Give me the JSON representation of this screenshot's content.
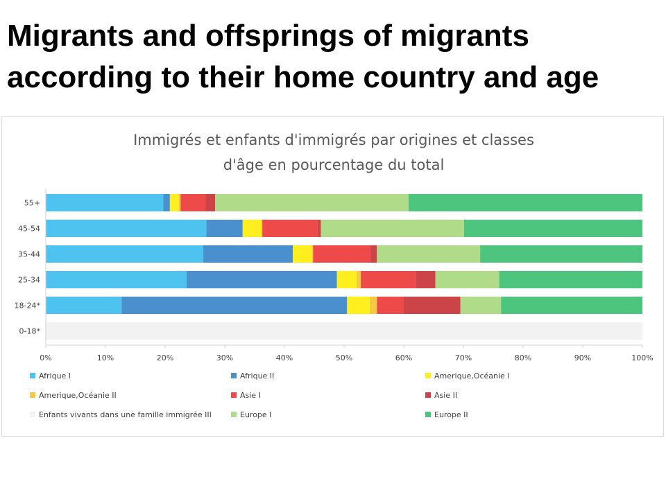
{
  "header": {
    "title_line1": "Migrants and offsprings of migrants",
    "title_line2": "according to their home country and age"
  },
  "chart_data": {
    "type": "bar",
    "orientation": "horizontal",
    "stacked": "percent",
    "title_line1": "Immigrés et enfants d'immigrés par origines et classes",
    "title_line2": "d'âge en pourcentage du total",
    "categories": [
      "55+",
      "45-54",
      "35-44",
      "25-34",
      "18-24*",
      "0-18*"
    ],
    "xlim": [
      0,
      100
    ],
    "xticks": [
      "0%",
      "10%",
      "20%",
      "30%",
      "40%",
      "50%",
      "60%",
      "70%",
      "80%",
      "90%",
      "100%"
    ],
    "grid": false,
    "legend_position": "bottom",
    "series": [
      {
        "name": "Afrique I",
        "color": "#4fc3f0",
        "values": [
          19.7,
          26.9,
          26.4,
          23.6,
          12.7,
          0
        ]
      },
      {
        "name": "Afrique II",
        "color": "#4a90cf",
        "values": [
          1.1,
          6.1,
          15.0,
          25.2,
          37.8,
          0
        ]
      },
      {
        "name": "Amerique,Océanie I",
        "color": "#ffef1f",
        "values": [
          1.5,
          3.1,
          3.2,
          3.3,
          3.8,
          0
        ]
      },
      {
        "name": "Amerique,Océanie II",
        "color": "#f7c845",
        "values": [
          0.3,
          0.2,
          0.2,
          0.7,
          1.2,
          0
        ]
      },
      {
        "name": "Asie I",
        "color": "#ef4a4a",
        "values": [
          4.2,
          9.2,
          9.6,
          9.2,
          4.5,
          0
        ]
      },
      {
        "name": "Asie II",
        "color": "#cc4448",
        "values": [
          1.6,
          0.6,
          1.1,
          3.3,
          9.5,
          0
        ]
      },
      {
        "name": "Enfants vivants dans une famille immigrée III",
        "color": "#f2f2f2",
        "values": [
          0,
          0,
          0,
          0,
          0,
          100
        ]
      },
      {
        "name": "Europe I",
        "color": "#b0dc8a",
        "values": [
          32.4,
          24.0,
          17.3,
          10.7,
          6.8,
          0
        ]
      },
      {
        "name": "Europe II",
        "color": "#4ec57e",
        "values": [
          39.2,
          29.9,
          27.2,
          24.0,
          23.7,
          0
        ]
      }
    ]
  }
}
